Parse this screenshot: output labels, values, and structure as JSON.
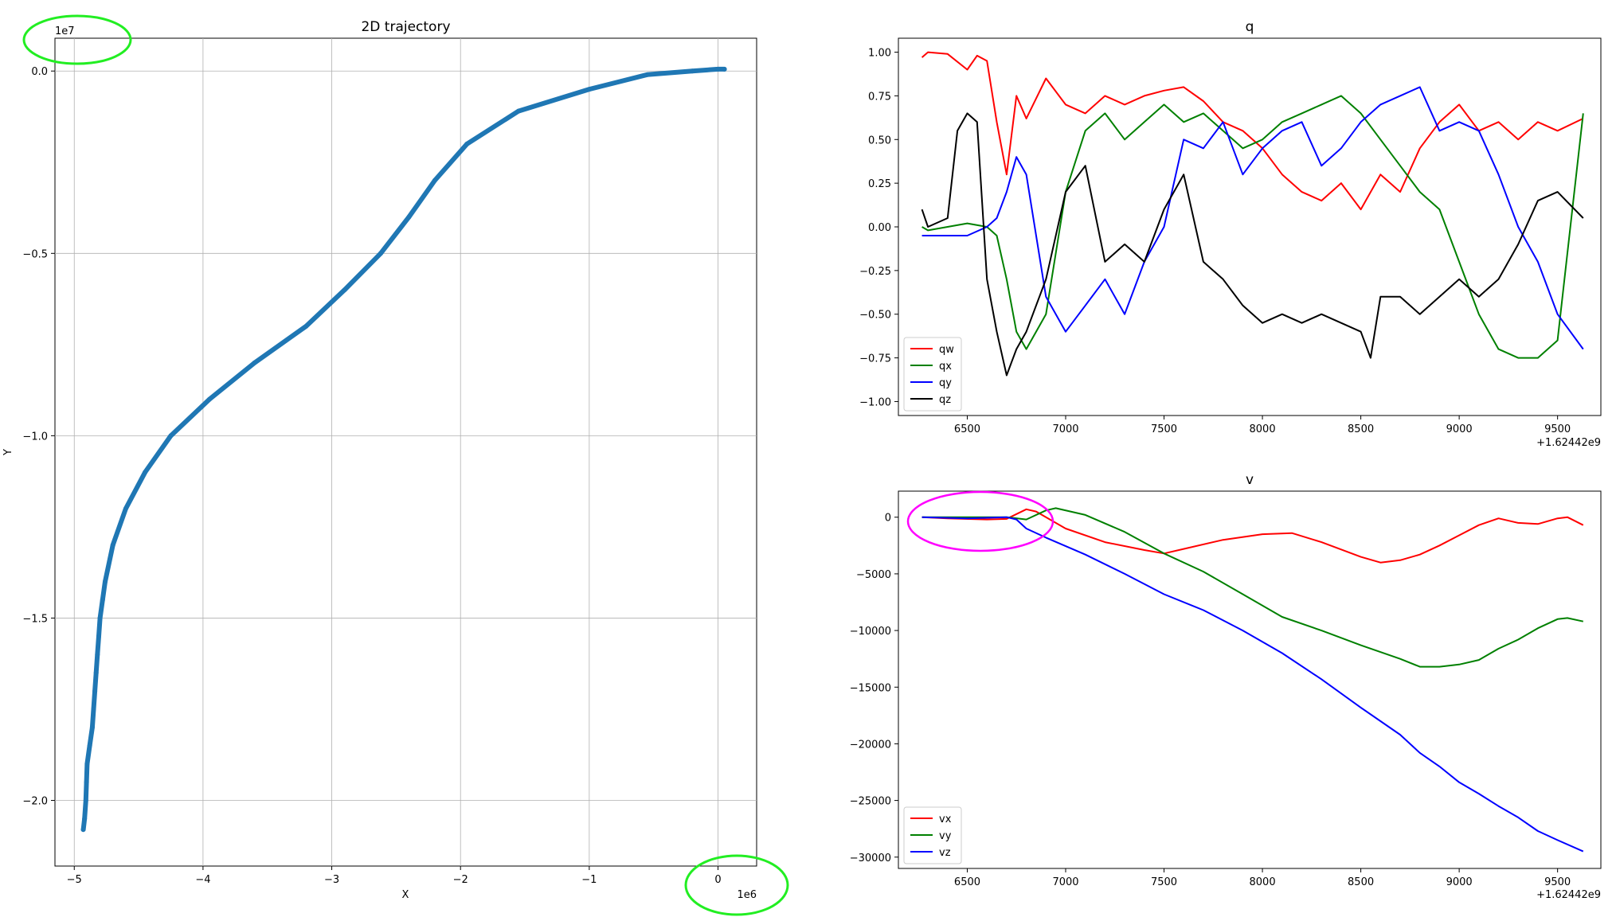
{
  "chart_data": [
    {
      "type": "scatter",
      "title": "2D trajectory",
      "xlabel": "X",
      "ylabel": "Y",
      "x_offset_text": "1e6",
      "y_offset_text": "1e7",
      "xlim": [
        -5.15,
        0.3
      ],
      "ylim": [
        -2.18,
        0.09
      ],
      "xticks": [
        -5,
        -4,
        -3,
        -2,
        -1,
        0
      ],
      "xtick_labels": [
        "−5",
        "−4",
        "−3",
        "−2",
        "−1",
        "0"
      ],
      "yticks": [
        0.0,
        -0.5,
        -1.0,
        -1.5,
        -2.0
      ],
      "ytick_labels": [
        "0.0",
        "−0.5",
        "−1.0",
        "−1.5",
        "−2.0"
      ],
      "grid": true,
      "series": [
        {
          "color": "#1f77b4",
          "points": [
            [
              -4.93,
              -2.08
            ],
            [
              -4.92,
              -2.05
            ],
            [
              -4.91,
              -2.0
            ],
            [
              -4.905,
              -1.95
            ],
            [
              -4.9,
              -1.9
            ],
            [
              -4.88,
              -1.85
            ],
            [
              -4.86,
              -1.8
            ],
            [
              -4.85,
              -1.75
            ],
            [
              -4.84,
              -1.7
            ],
            [
              -4.83,
              -1.65
            ],
            [
              -4.82,
              -1.6
            ],
            [
              -4.81,
              -1.55
            ],
            [
              -4.8,
              -1.5
            ],
            [
              -4.78,
              -1.45
            ],
            [
              -4.76,
              -1.4
            ],
            [
              -4.7,
              -1.3
            ],
            [
              -4.6,
              -1.2
            ],
            [
              -4.45,
              -1.1
            ],
            [
              -4.25,
              -1.0
            ],
            [
              -3.95,
              -0.9
            ],
            [
              -3.6,
              -0.8
            ],
            [
              -3.2,
              -0.7
            ],
            [
              -2.9,
              -0.6
            ],
            [
              -2.62,
              -0.5
            ],
            [
              -2.4,
              -0.4
            ],
            [
              -2.2,
              -0.3
            ],
            [
              -1.95,
              -0.2
            ],
            [
              -1.55,
              -0.11
            ],
            [
              -1.0,
              -0.05
            ],
            [
              -0.55,
              -0.01
            ],
            [
              -0.2,
              0.0
            ],
            [
              0.0,
              0.005
            ],
            [
              0.05,
              0.005
            ]
          ]
        }
      ],
      "annotations": [
        "green ellipse around 1e7",
        "green ellipse around 1e6"
      ]
    },
    {
      "type": "line",
      "title": "q",
      "x_offset_text": "+1.62442e9",
      "xlim": [
        6150,
        9720
      ],
      "ylim": [
        -1.08,
        1.08
      ],
      "xticks": [
        6500,
        7000,
        7500,
        8000,
        8500,
        9000,
        9500
      ],
      "xtick_labels": [
        "6500",
        "7000",
        "7500",
        "8000",
        "8500",
        "9000",
        "9500"
      ],
      "yticks": [
        1.0,
        0.75,
        0.5,
        0.25,
        0.0,
        -0.25,
        -0.5,
        -0.75,
        -1.0
      ],
      "ytick_labels": [
        "1.00",
        "0.75",
        "0.50",
        "0.25",
        "0.00",
        "−0.25",
        "−0.50",
        "−0.75",
        "−1.00"
      ],
      "legend_position": "lower left",
      "series": [
        {
          "name": "qw",
          "color": "#ff0000",
          "x": [
            6270,
            6300,
            6400,
            6500,
            6550,
            6600,
            6650,
            6700,
            6750,
            6800,
            6900,
            7000,
            7100,
            7200,
            7300,
            7400,
            7500,
            7600,
            7700,
            7800,
            7900,
            8000,
            8100,
            8200,
            8300,
            8400,
            8500,
            8600,
            8700,
            8800,
            8900,
            9000,
            9100,
            9200,
            9300,
            9400,
            9500,
            9630
          ],
          "y": [
            0.97,
            1.0,
            0.99,
            0.9,
            0.98,
            0.95,
            0.6,
            0.3,
            0.75,
            0.62,
            0.85,
            0.7,
            0.65,
            0.75,
            0.7,
            0.75,
            0.78,
            0.8,
            0.72,
            0.6,
            0.55,
            0.45,
            0.3,
            0.2,
            0.15,
            0.25,
            0.1,
            0.3,
            0.2,
            0.45,
            0.6,
            0.7,
            0.55,
            0.6,
            0.5,
            0.6,
            0.55,
            0.62
          ]
        },
        {
          "name": "qx",
          "color": "#008000",
          "x": [
            6270,
            6300,
            6400,
            6500,
            6600,
            6650,
            6700,
            6750,
            6800,
            6900,
            7000,
            7100,
            7200,
            7300,
            7400,
            7500,
            7600,
            7700,
            7800,
            7900,
            8000,
            8100,
            8200,
            8300,
            8400,
            8500,
            8600,
            8700,
            8800,
            8900,
            9000,
            9100,
            9200,
            9300,
            9400,
            9500,
            9630
          ],
          "y": [
            0.0,
            -0.02,
            0.0,
            0.02,
            0.0,
            -0.05,
            -0.3,
            -0.6,
            -0.7,
            -0.5,
            0.2,
            0.55,
            0.65,
            0.5,
            0.6,
            0.7,
            0.6,
            0.65,
            0.55,
            0.45,
            0.5,
            0.6,
            0.65,
            0.7,
            0.75,
            0.65,
            0.5,
            0.35,
            0.2,
            0.1,
            -0.2,
            -0.5,
            -0.7,
            -0.75,
            -0.75,
            -0.65,
            0.65
          ]
        },
        {
          "name": "qy",
          "color": "#0000ff",
          "x": [
            6270,
            6300,
            6400,
            6500,
            6600,
            6650,
            6700,
            6750,
            6800,
            6900,
            7000,
            7100,
            7200,
            7300,
            7400,
            7500,
            7600,
            7700,
            7800,
            7900,
            8000,
            8100,
            8200,
            8300,
            8400,
            8500,
            8600,
            8700,
            8800,
            8900,
            9000,
            9100,
            9200,
            9300,
            9400,
            9500,
            9630
          ],
          "y": [
            -0.05,
            -0.05,
            -0.05,
            -0.05,
            0.0,
            0.05,
            0.2,
            0.4,
            0.3,
            -0.4,
            -0.6,
            -0.45,
            -0.3,
            -0.5,
            -0.2,
            0.0,
            0.5,
            0.45,
            0.6,
            0.3,
            0.45,
            0.55,
            0.6,
            0.35,
            0.45,
            0.6,
            0.7,
            0.75,
            0.8,
            0.55,
            0.6,
            0.55,
            0.3,
            0.0,
            -0.2,
            -0.5,
            -0.7
          ]
        },
        {
          "name": "qz",
          "color": "#000000",
          "x": [
            6270,
            6300,
            6400,
            6450,
            6500,
            6550,
            6600,
            6650,
            6700,
            6750,
            6800,
            6900,
            7000,
            7100,
            7200,
            7300,
            7400,
            7500,
            7600,
            7700,
            7800,
            7900,
            8000,
            8100,
            8200,
            8300,
            8400,
            8500,
            8550,
            8600,
            8700,
            8800,
            8900,
            9000,
            9100,
            9200,
            9300,
            9400,
            9500,
            9630
          ],
          "y": [
            0.1,
            0.0,
            0.05,
            0.55,
            0.65,
            0.6,
            -0.3,
            -0.6,
            -0.85,
            -0.7,
            -0.6,
            -0.3,
            0.2,
            0.35,
            -0.2,
            -0.1,
            -0.2,
            0.1,
            0.3,
            -0.2,
            -0.3,
            -0.45,
            -0.55,
            -0.5,
            -0.55,
            -0.5,
            -0.55,
            -0.6,
            -0.75,
            -0.4,
            -0.4,
            -0.5,
            -0.4,
            -0.3,
            -0.4,
            -0.3,
            -0.1,
            0.15,
            0.2,
            0.05
          ]
        }
      ]
    },
    {
      "type": "line",
      "title": "v",
      "x_offset_text": "+1.62442e9",
      "xlim": [
        6150,
        9720
      ],
      "ylim": [
        -31000,
        2300
      ],
      "xticks": [
        6500,
        7000,
        7500,
        8000,
        8500,
        9000,
        9500
      ],
      "xtick_labels": [
        "6500",
        "7000",
        "7500",
        "8000",
        "8500",
        "9000",
        "9500"
      ],
      "yticks": [
        0,
        -5000,
        -10000,
        -15000,
        -20000,
        -25000,
        -30000
      ],
      "ytick_labels": [
        "0",
        "−5000",
        "−10000",
        "−15000",
        "−20000",
        "−25000",
        "−30000"
      ],
      "legend_position": "lower left",
      "series": [
        {
          "name": "vx",
          "color": "#ff0000",
          "x": [
            6270,
            6400,
            6600,
            6700,
            6800,
            6850,
            7000,
            7200,
            7400,
            7500,
            7600,
            7800,
            8000,
            8150,
            8300,
            8500,
            8600,
            8700,
            8800,
            8900,
            9000,
            9100,
            9200,
            9300,
            9400,
            9500,
            9550,
            9630
          ],
          "y": [
            0,
            -100,
            -200,
            -150,
            700,
            500,
            -1000,
            -2200,
            -2900,
            -3200,
            -2800,
            -2000,
            -1500,
            -1400,
            -2200,
            -3500,
            -4000,
            -3800,
            -3300,
            -2500,
            -1600,
            -700,
            -100,
            -500,
            -600,
            -100,
            0,
            -700
          ]
        },
        {
          "name": "vy",
          "color": "#008000",
          "x": [
            6270,
            6500,
            6700,
            6800,
            6900,
            6950,
            7100,
            7300,
            7500,
            7700,
            7900,
            8100,
            8300,
            8500,
            8700,
            8800,
            8900,
            9000,
            9100,
            9200,
            9300,
            9400,
            9500,
            9550,
            9630
          ],
          "y": [
            0,
            0,
            0,
            -200,
            600,
            800,
            200,
            -1300,
            -3200,
            -4800,
            -6800,
            -8800,
            -10000,
            -11300,
            -12500,
            -13200,
            -13200,
            -13000,
            -12600,
            -11600,
            -10800,
            -9800,
            -9000,
            -8900,
            -9200
          ]
        },
        {
          "name": "vz",
          "color": "#0000ff",
          "x": [
            6270,
            6500,
            6700,
            6750,
            6800,
            6900,
            7100,
            7300,
            7500,
            7700,
            7900,
            8100,
            8300,
            8500,
            8700,
            8800,
            8900,
            9000,
            9100,
            9200,
            9300,
            9400,
            9500,
            9630
          ],
          "y": [
            0,
            -100,
            0,
            -200,
            -1000,
            -1800,
            -3300,
            -5000,
            -6800,
            -8200,
            -10000,
            -12000,
            -14300,
            -16800,
            -19200,
            -20800,
            -22000,
            -23400,
            -24400,
            -25500,
            -26500,
            -27700,
            -28500,
            -29500
          ]
        }
      ]
    }
  ]
}
